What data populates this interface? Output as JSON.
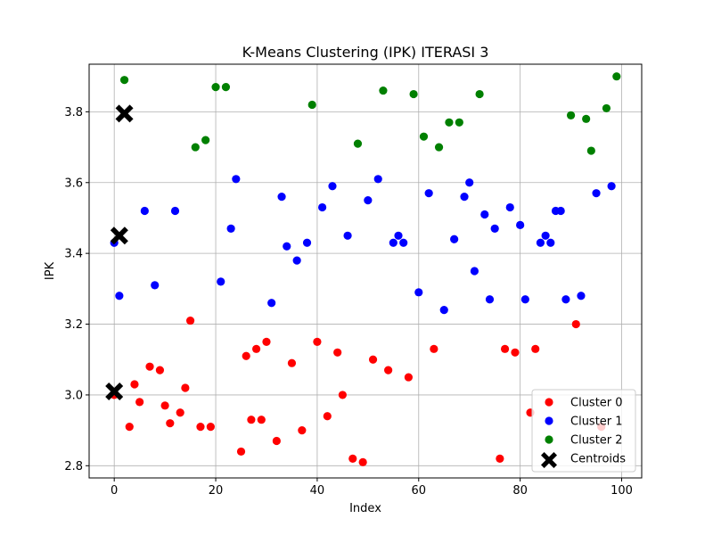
{
  "chart_data": {
    "type": "scatter",
    "title": "K-Means Clustering (IPK) ITERASI 3",
    "xlabel": "Index",
    "ylabel": "IPK",
    "xlim": [
      -4.95,
      103.95
    ],
    "ylim": [
      2.7655,
      3.9345
    ],
    "xticks": [
      0,
      20,
      40,
      60,
      80,
      100
    ],
    "yticks": [
      2.8,
      3.0,
      3.2,
      3.4,
      3.6,
      3.8
    ],
    "xtick_labels": [
      "0",
      "20",
      "40",
      "60",
      "80",
      "100"
    ],
    "ytick_labels": [
      "2.8",
      "3.0",
      "3.2",
      "3.4",
      "3.6",
      "3.8"
    ],
    "grid": true,
    "legend_position": "lower-right",
    "series": [
      {
        "name": "Cluster 0",
        "color": "#ff0000",
        "x": [
          0,
          3,
          4,
          5,
          7,
          9,
          10,
          11,
          13,
          14,
          15,
          17,
          19,
          25,
          26,
          27,
          28,
          29,
          30,
          32,
          35,
          37,
          40,
          42,
          44,
          45,
          47,
          49,
          51,
          54,
          58,
          63,
          76,
          77,
          79,
          82,
          83,
          91,
          96
        ],
        "y": [
          3.0,
          2.91,
          3.03,
          2.98,
          3.08,
          3.07,
          2.97,
          2.92,
          2.95,
          3.02,
          3.21,
          2.91,
          2.91,
          2.84,
          3.11,
          2.93,
          3.13,
          2.93,
          3.15,
          2.87,
          3.09,
          2.9,
          3.15,
          2.94,
          3.12,
          3.0,
          2.82,
          2.81,
          3.1,
          3.07,
          3.05,
          3.13,
          2.82,
          3.13,
          3.12,
          2.95,
          3.13,
          3.2,
          2.91
        ]
      },
      {
        "name": "Cluster 1",
        "color": "#0000ff",
        "x": [
          0,
          1,
          6,
          8,
          12,
          21,
          23,
          24,
          31,
          33,
          34,
          36,
          38,
          41,
          43,
          46,
          50,
          52,
          55,
          56,
          57,
          60,
          62,
          65,
          67,
          69,
          70,
          71,
          73,
          74,
          75,
          78,
          80,
          81,
          84,
          85,
          86,
          87,
          88,
          89,
          92,
          95,
          98
        ],
        "y": [
          3.43,
          3.28,
          3.52,
          3.31,
          3.52,
          3.32,
          3.47,
          3.61,
          3.26,
          3.56,
          3.42,
          3.38,
          3.43,
          3.53,
          3.59,
          3.45,
          3.55,
          3.61,
          3.43,
          3.45,
          3.43,
          3.29,
          3.57,
          3.24,
          3.44,
          3.56,
          3.6,
          3.35,
          3.51,
          3.27,
          3.47,
          3.53,
          3.48,
          3.27,
          3.43,
          3.45,
          3.43,
          3.52,
          3.52,
          3.27,
          3.28,
          3.57,
          3.59
        ]
      },
      {
        "name": "Cluster 2",
        "color": "#008000",
        "x": [
          2,
          16,
          18,
          20,
          22,
          39,
          48,
          53,
          59,
          61,
          64,
          66,
          68,
          72,
          90,
          93,
          94,
          97,
          99
        ],
        "y": [
          3.89,
          3.7,
          3.72,
          3.87,
          3.87,
          3.82,
          3.71,
          3.86,
          3.85,
          3.73,
          3.7,
          3.77,
          3.77,
          3.85,
          3.79,
          3.78,
          3.69,
          3.81,
          3.9
        ]
      },
      {
        "name": "Centroids",
        "color": "#000000",
        "marker": "X",
        "x": [
          0,
          1,
          2
        ],
        "y": [
          3.01,
          3.45,
          3.795
        ]
      }
    ]
  }
}
